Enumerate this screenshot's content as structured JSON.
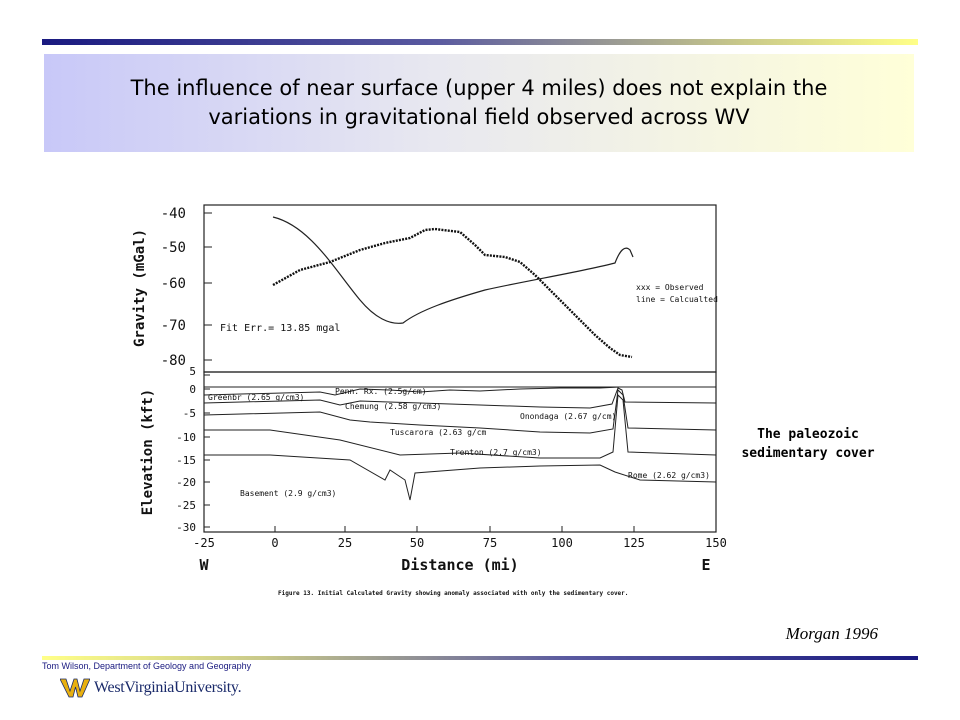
{
  "slide": {
    "title": "The influence of near surface (upper 4 miles) does not explain the variations in gravitational field observed across WV",
    "side_note": "The paleozoic sedimentary cover",
    "citation": "Morgan 1996",
    "footer_credit": "Tom Wilson, Department of Geology and Geography",
    "logo_text": "WestVirginiaUniversity."
  },
  "figure": {
    "gravity_ylabel": "Gravity (mGal)",
    "gravity_yticks": [
      "-40",
      "-50",
      "-60",
      "-70",
      "-80"
    ],
    "fit_error": "Fit Err.= 13.85 mgal",
    "legend_observed": "xxx = Observed",
    "legend_calculated": "line = Calcualted",
    "elev_ylabel": "Elevation (kft)",
    "elev_yticks": [
      "5",
      "0",
      "-5",
      "-10",
      "-15",
      "-20",
      "-25",
      "-30"
    ],
    "xticks": [
      "-25",
      "0",
      "25",
      "50",
      "75",
      "100",
      "125",
      "150"
    ],
    "xlabel": "Distance (mi)",
    "west": "W",
    "east": "E",
    "caption": "Figure 13.  Initial Calculated Gravity showing anomaly associated with only the sedimentary cover.",
    "layers": {
      "penn": "Penn. Rx. (2.5g/cm)",
      "greenbrier": "Greenbr (2.65 g/cm3)",
      "chemung": "Chemung (2.58 g/cm3)",
      "onondaga": "Onondaga (2.67 g/cm)",
      "tuscarora": "Tuscarora (2.63 g/cm",
      "trenton": "Trenton (2.7 g/cm3)",
      "rome": "Rome (2.62 g/cm3)",
      "basement": "Basement (2.9 g/cm3)"
    }
  }
}
